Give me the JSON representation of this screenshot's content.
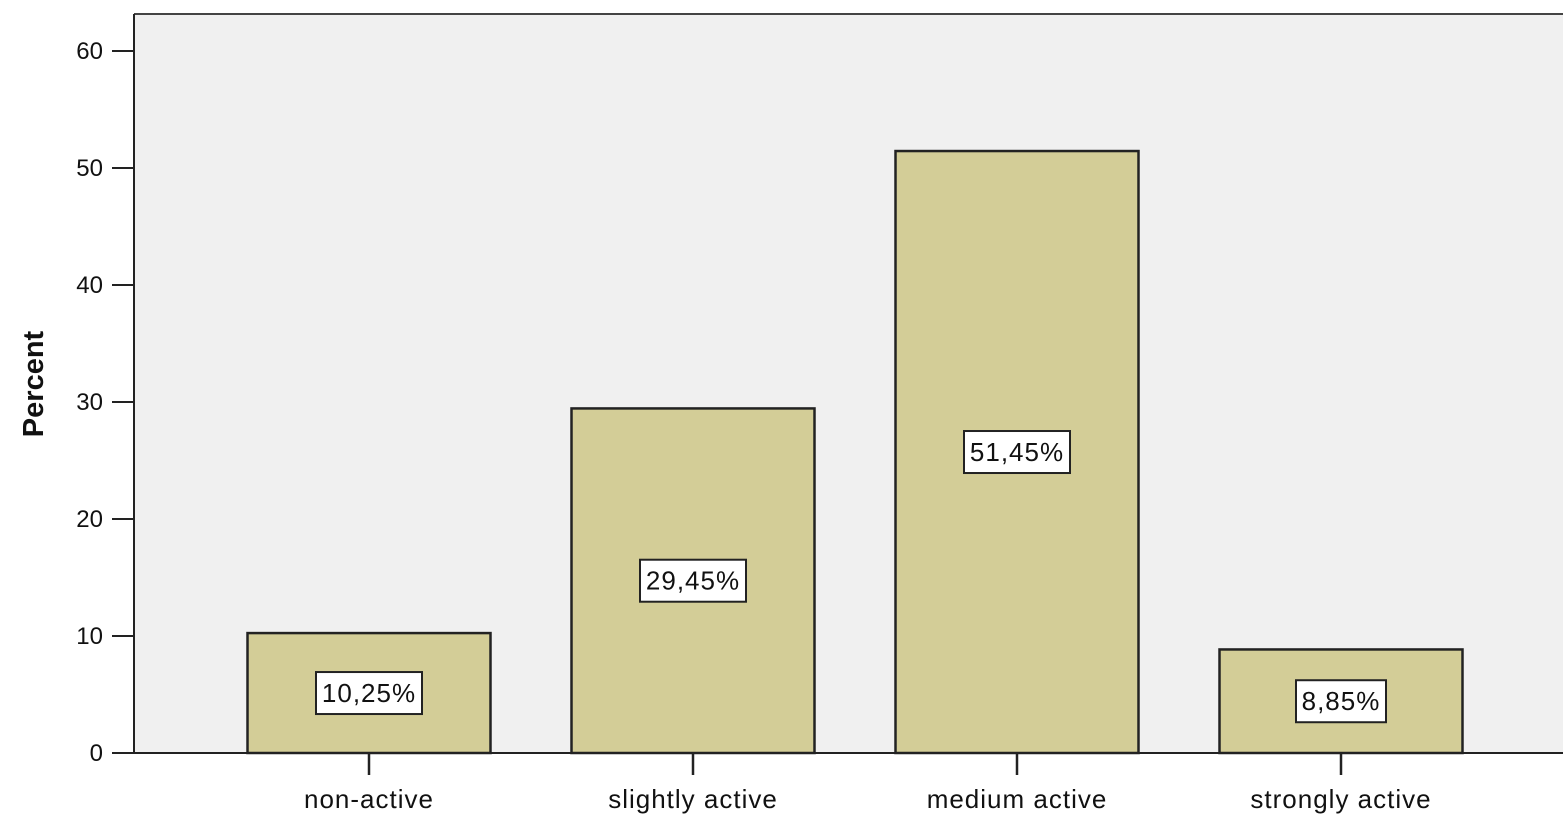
{
  "chart_data": {
    "type": "bar",
    "categories": [
      "non-active",
      "slightly active",
      "medium active",
      "strongly active"
    ],
    "values": [
      10.25,
      29.45,
      51.45,
      8.85
    ],
    "data_labels": [
      "10,25%",
      "29,45%",
      "51,45%",
      "8,85%"
    ],
    "title": "",
    "xlabel": "",
    "ylabel": "Percent",
    "ylim": [
      0,
      63
    ],
    "yticks": [
      0,
      10,
      20,
      30,
      40,
      50,
      60
    ],
    "grid": false,
    "colors": {
      "bar": "#d3cd97",
      "plot_background": "#f0f0f0",
      "stroke": "#222222"
    }
  }
}
